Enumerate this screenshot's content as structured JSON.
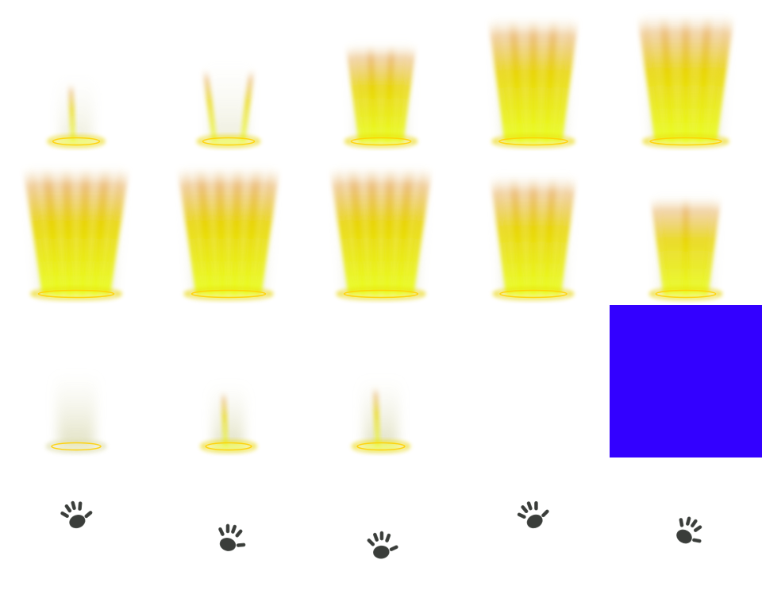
{
  "sheet": {
    "columns": 5,
    "rows": 4,
    "frames": [
      {
        "type": "pillar",
        "intensity": 0.18,
        "beams": 1,
        "glow_color": "#e8d400",
        "core_color": "#eaff22"
      },
      {
        "type": "pillar",
        "intensity": 0.32,
        "beams": 2,
        "glow_color": "#e8d400",
        "core_color": "#eaff22"
      },
      {
        "type": "pillar",
        "intensity": 0.55,
        "beams": 4,
        "glow_color": "#e8d400",
        "core_color": "#eaff22"
      },
      {
        "type": "pillar",
        "intensity": 0.8,
        "beams": 5,
        "glow_color": "#e8d400",
        "core_color": "#eaff22"
      },
      {
        "type": "pillar",
        "intensity": 0.88,
        "beams": 5,
        "glow_color": "#e8d400",
        "core_color": "#eaff22"
      },
      {
        "type": "pillar",
        "intensity": 1.0,
        "beams": 6,
        "glow_color": "#e8d400",
        "core_color": "#eaff22"
      },
      {
        "type": "pillar",
        "intensity": 0.95,
        "beams": 6,
        "glow_color": "#e8d400",
        "core_color": "#eaff22"
      },
      {
        "type": "pillar",
        "intensity": 0.95,
        "beams": 6,
        "glow_color": "#e8d400",
        "core_color": "#eaff22"
      },
      {
        "type": "pillar",
        "intensity": 0.75,
        "beams": 5,
        "glow_color": "#e8d400",
        "core_color": "#eaff22"
      },
      {
        "type": "pillar",
        "intensity": 0.55,
        "beams": 3,
        "glow_color": "#e8d400",
        "core_color": "#eaff22"
      },
      {
        "type": "pillar-fade",
        "intensity": 0.25,
        "beams": 0,
        "glow_color": "#d8d8a0",
        "core_color": "#e8e8b0"
      },
      {
        "type": "pillar-fade",
        "intensity": 0.15,
        "beams": 1,
        "glow_color": "#e8d400",
        "core_color": "#eaff22"
      },
      {
        "type": "pillar-fade",
        "intensity": 0.2,
        "beams": 1,
        "glow_color": "#e8d400",
        "core_color": "#eaff22"
      },
      {
        "type": "empty"
      },
      {
        "type": "solid",
        "color": "#3300ff"
      },
      {
        "type": "hand",
        "rotation": -20,
        "offset_y": 0.4
      },
      {
        "type": "hand",
        "rotation": 15,
        "offset_y": 0.55
      },
      {
        "type": "hand",
        "rotation": -5,
        "offset_y": 0.6
      },
      {
        "type": "hand",
        "rotation": -25,
        "offset_y": 0.4
      },
      {
        "type": "hand",
        "rotation": 30,
        "offset_y": 0.5
      }
    ]
  }
}
